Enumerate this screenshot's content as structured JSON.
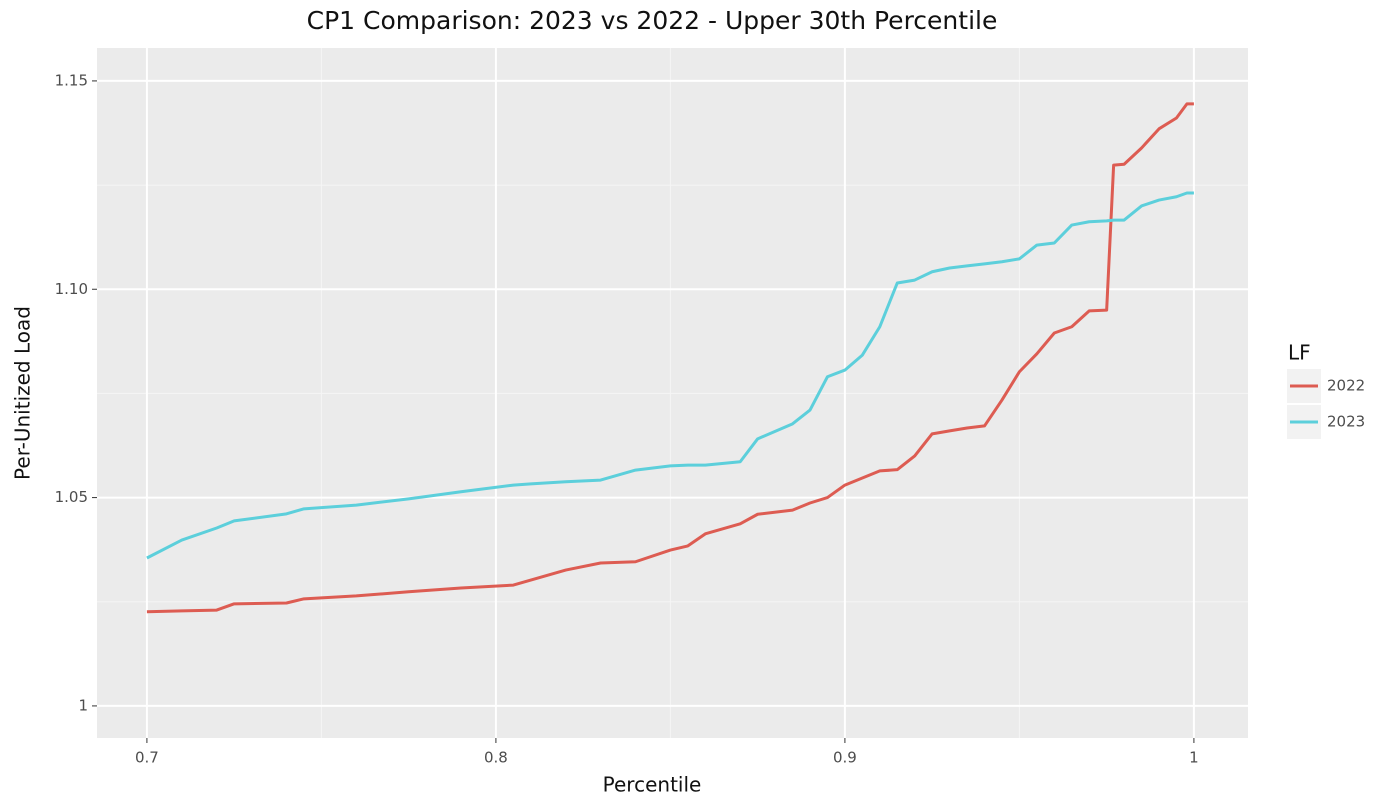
{
  "chart_data": {
    "type": "line",
    "title": "CP1 Comparison: 2023 vs 2022 - Upper 30th Percentile",
    "x_label": "Percentile",
    "y_label": "Per-Unitized Load",
    "legend_title": "LF",
    "legend_position": "right",
    "grid": true,
    "x": [
      0.7,
      0.71,
      0.72,
      0.725,
      0.74,
      0.745,
      0.76,
      0.775,
      0.79,
      0.805,
      0.81,
      0.82,
      0.83,
      0.84,
      0.85,
      0.855,
      0.86,
      0.87,
      0.875,
      0.885,
      0.89,
      0.895,
      0.9,
      0.905,
      0.91,
      0.915,
      0.92,
      0.925,
      0.93,
      0.935,
      0.94,
      0.945,
      0.95,
      0.955,
      0.96,
      0.965,
      0.97,
      0.975,
      0.977,
      0.98,
      0.985,
      0.99,
      0.995,
      0.998,
      1.0
    ],
    "series": [
      {
        "name": "2022",
        "color": "#dd5c52",
        "values": [
          1.0226,
          1.0228,
          1.023,
          1.0245,
          1.0247,
          1.0257,
          1.0264,
          1.0274,
          1.0283,
          1.029,
          1.0302,
          1.0326,
          1.0343,
          1.0346,
          1.0374,
          1.0384,
          1.0413,
          1.0437,
          1.046,
          1.047,
          1.0487,
          1.05,
          1.053,
          1.0547,
          1.0564,
          1.0567,
          1.06,
          1.0653,
          1.066,
          1.0667,
          1.0672,
          1.0734,
          1.0802,
          1.0845,
          1.0895,
          1.091,
          1.0948,
          1.095,
          1.1298,
          1.13,
          1.1339,
          1.1385,
          1.1411,
          1.1445,
          1.1445
        ]
      },
      {
        "name": "2023",
        "color": "#5ccfdb",
        "values": [
          1.0355,
          1.0398,
          1.0427,
          1.0444,
          1.0461,
          1.0473,
          1.0482,
          1.0497,
          1.0514,
          1.053,
          1.0533,
          1.0538,
          1.0542,
          1.0566,
          1.0576,
          1.0578,
          1.0578,
          1.0586,
          1.0641,
          1.0677,
          1.071,
          1.079,
          1.0806,
          1.0842,
          1.091,
          1.1015,
          1.1022,
          1.1042,
          1.1051,
          1.1056,
          1.1061,
          1.1066,
          1.1073,
          1.1106,
          1.1111,
          1.1154,
          1.1162,
          1.1164,
          1.1166,
          1.1166,
          1.12,
          1.1214,
          1.1222,
          1.1231,
          1.1231
        ]
      }
    ],
    "xlim": [
      0.6857,
      1.0155
    ],
    "ylim": [
      0.9923,
      1.1579
    ],
    "xticks": [
      0.7,
      0.8,
      0.9,
      1
    ],
    "yticks": [
      1,
      1.05,
      {
        "value": 1.1,
        "label": "1.10"
      },
      1.15
    ]
  }
}
